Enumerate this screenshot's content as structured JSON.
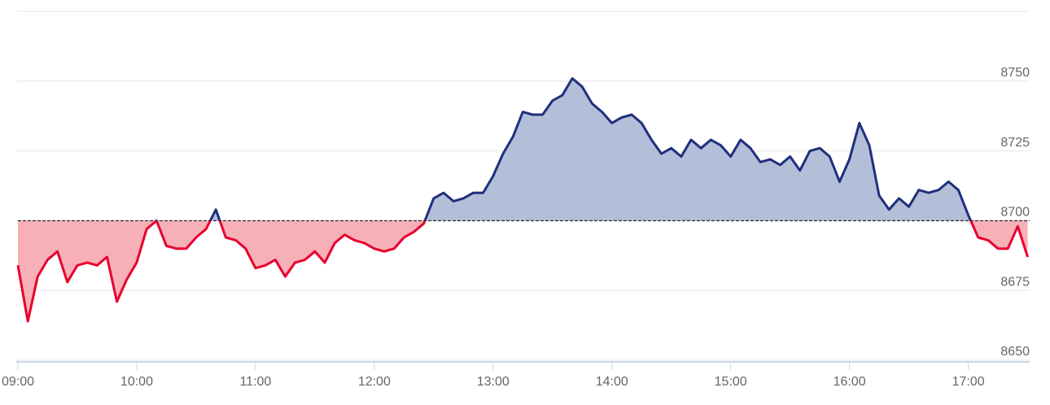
{
  "chart_data": {
    "type": "baseline-area",
    "x": [
      "09:00",
      "09:05",
      "09:10",
      "09:15",
      "09:20",
      "09:25",
      "09:30",
      "09:35",
      "09:40",
      "09:45",
      "09:50",
      "09:55",
      "10:00",
      "10:05",
      "10:10",
      "10:15",
      "10:20",
      "10:25",
      "10:30",
      "10:35",
      "10:40",
      "10:45",
      "10:50",
      "10:55",
      "11:00",
      "11:05",
      "11:10",
      "11:15",
      "11:20",
      "11:25",
      "11:30",
      "11:35",
      "11:40",
      "11:45",
      "11:50",
      "11:55",
      "12:00",
      "12:05",
      "12:10",
      "12:15",
      "12:20",
      "12:25",
      "12:30",
      "12:35",
      "12:40",
      "12:45",
      "12:50",
      "12:55",
      "13:00",
      "13:05",
      "13:10",
      "13:15",
      "13:20",
      "13:25",
      "13:30",
      "13:35",
      "13:40",
      "13:45",
      "13:50",
      "13:55",
      "14:00",
      "14:05",
      "14:10",
      "14:15",
      "14:20",
      "14:25",
      "14:30",
      "14:35",
      "14:40",
      "14:45",
      "14:50",
      "14:55",
      "15:00",
      "15:05",
      "15:10",
      "15:15",
      "15:20",
      "15:25",
      "15:30",
      "15:35",
      "15:40",
      "15:45",
      "15:50",
      "15:55",
      "16:00",
      "16:05",
      "16:10",
      "16:15",
      "16:20",
      "16:25",
      "16:30",
      "16:35",
      "16:40",
      "16:45",
      "16:50",
      "16:55",
      "17:00",
      "17:05",
      "17:10",
      "17:15",
      "17:20",
      "17:25",
      "17:30"
    ],
    "values": [
      8684,
      8664,
      8680,
      8686,
      8689,
      8678,
      8684,
      8685,
      8684,
      8687,
      8671,
      8679,
      8685,
      8697,
      8700,
      8691,
      8690,
      8690,
      8694,
      8697,
      8704,
      8694,
      8693,
      8690,
      8683,
      8684,
      8686,
      8680,
      8685,
      8686,
      8689,
      8685,
      8692,
      8695,
      8693,
      8692,
      8690,
      8689,
      8690,
      8694,
      8696,
      8699,
      8708,
      8710,
      8707,
      8708,
      8710,
      8710,
      8716,
      8724,
      8730,
      8739,
      8738,
      8738,
      8743,
      8745,
      8751,
      8748,
      8742,
      8739,
      8735,
      8737,
      8738,
      8735,
      8729,
      8724,
      8726,
      8723,
      8729,
      8726,
      8729,
      8727,
      8723,
      8729,
      8726,
      8721,
      8722,
      8720,
      8723,
      8718,
      8725,
      8726,
      8723,
      8714,
      8722,
      8735,
      8727,
      8709,
      8704,
      8708,
      8705,
      8711,
      8710,
      8711,
      8714,
      8711,
      8702,
      8694,
      8693,
      8690,
      8690,
      8698,
      8687
    ],
    "baseline": 8700,
    "color_above": "#1f2f7d",
    "fill_above": "#b3bfd8",
    "color_below": "#e8002d",
    "fill_below": "#f8b0b8",
    "xlim": [
      "09:00",
      "17:31"
    ],
    "xticks": [
      "09:00",
      "10:00",
      "11:00",
      "12:00",
      "13:00",
      "14:00",
      "15:00",
      "16:00",
      "17:00"
    ],
    "ylim": [
      8650,
      8775
    ],
    "yticks": [
      8650,
      8675,
      8700,
      8725,
      8750
    ],
    "grid": true
  }
}
